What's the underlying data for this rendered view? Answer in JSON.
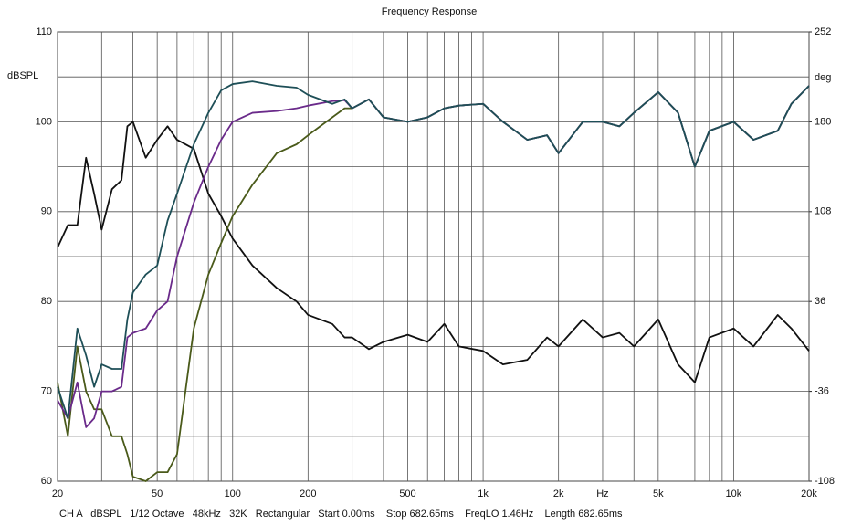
{
  "chart_data": {
    "type": "line",
    "title": "Frequency Response",
    "ylabel": "dBSPL",
    "y2label": "deg",
    "footer": "CH A   dBSPL   1/12 Octave   48kHz   32K   Rectangular   Start 0.00ms    Stop 682.65ms    FreqLO 1.46Hz    Length 682.65ms",
    "xscale": "log",
    "grid": true,
    "xlim": [
      20,
      20000
    ],
    "xticks": [
      20,
      50,
      100,
      200,
      500,
      {
        "value": 1000,
        "label": "1k"
      },
      {
        "value": 2000,
        "label": "2k"
      },
      {
        "value": 3000,
        "label": "Hz"
      },
      {
        "value": 5000,
        "label": "5k"
      },
      {
        "value": 10000,
        "label": "10k"
      },
      {
        "value": 20000,
        "label": "20k"
      }
    ],
    "xminorticks": [
      30,
      40,
      60,
      70,
      80,
      90,
      300,
      400,
      600,
      700,
      800,
      900,
      4000,
      6000,
      7000,
      8000,
      9000
    ],
    "ylim": [
      60,
      110
    ],
    "yticks": [
      60,
      70,
      80,
      90,
      100,
      110
    ],
    "yminorticks": [
      65,
      75,
      85,
      95,
      105
    ],
    "y2lim": [
      -108,
      252
    ],
    "y2ticks": [
      -108,
      -36,
      36,
      108,
      180,
      252
    ],
    "x": [
      20,
      22,
      24,
      26,
      28,
      30,
      33,
      36,
      38,
      40,
      45,
      50,
      55,
      60,
      70,
      80,
      90,
      100,
      120,
      150,
      180,
      200,
      250,
      280,
      300,
      350,
      400,
      500,
      600,
      700,
      800,
      1000,
      1200,
      1500,
      1800,
      2000,
      2500,
      3000,
      3500,
      4000,
      5000,
      6000,
      7000,
      8000,
      10000,
      12000,
      15000,
      17000,
      20000
    ],
    "series": [
      {
        "color": "#111111",
        "values": [
          86,
          88.5,
          88.5,
          96,
          92,
          88,
          92.5,
          93.5,
          99.5,
          100,
          96,
          98,
          99.5,
          98,
          97,
          92,
          89.5,
          87,
          84,
          81.5,
          80,
          78.5,
          77.5,
          76,
          76,
          74.7,
          75.5,
          76.3,
          75.5,
          77.5,
          75,
          74.5,
          73,
          73.5,
          76,
          75,
          78,
          76,
          76.5,
          75,
          78,
          73,
          71,
          76,
          77,
          75,
          78.5,
          77,
          74.5
        ]
      },
      {
        "color": "#4a5a1a",
        "values": [
          71,
          65,
          75,
          70,
          68,
          68,
          65,
          65,
          63,
          60.5,
          60,
          61,
          61,
          63,
          77,
          83,
          86.5,
          89.5,
          93,
          96.5,
          97.5,
          98.5,
          100.5,
          101.5,
          101.5,
          102.5,
          100.5,
          100,
          100.5,
          101.5,
          101.8,
          102,
          100,
          98,
          98.5,
          96.5,
          100,
          100,
          99.5,
          101,
          103.3,
          101,
          95,
          99,
          100,
          98,
          99,
          102,
          104
        ]
      },
      {
        "color": "#6a2a8a",
        "values": [
          69,
          67,
          71,
          66,
          67,
          70,
          70,
          70.5,
          76,
          76.5,
          77,
          79,
          80,
          85,
          91,
          95,
          98,
          100,
          101,
          101.2,
          101.5,
          101.8,
          102.3,
          102.4,
          101.5,
          102.5,
          100.5,
          100,
          100.5,
          101.5,
          101.8,
          102,
          100,
          98,
          98.5,
          96.5,
          100,
          100,
          99.5,
          101,
          103.3,
          101,
          95,
          99,
          100,
          98,
          99,
          102,
          104
        ]
      },
      {
        "color": "#1e4f57",
        "values": [
          70.5,
          67,
          77,
          74,
          70.5,
          73,
          72.5,
          72.5,
          78,
          81,
          83,
          84,
          89,
          92,
          97.5,
          101,
          103.5,
          104.2,
          104.5,
          104,
          103.8,
          103,
          102,
          102.5,
          101.5,
          102.5,
          100.5,
          100,
          100.5,
          101.5,
          101.8,
          102,
          100,
          98,
          98.5,
          96.5,
          100,
          100,
          99.5,
          101,
          103.3,
          101,
          95,
          99,
          100,
          98,
          99,
          102,
          104
        ]
      }
    ]
  }
}
